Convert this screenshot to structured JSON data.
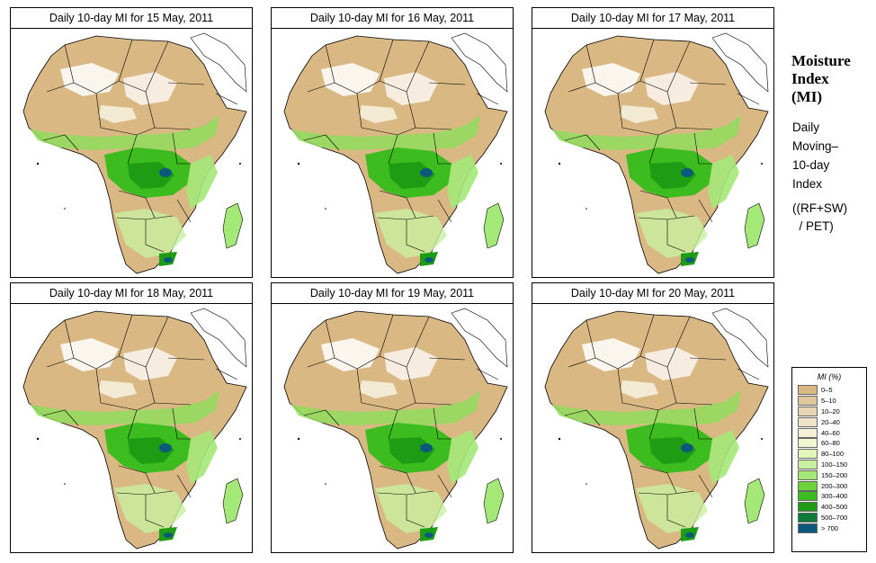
{
  "panels": [
    {
      "title": "Daily 10-day MI for  15 May, 2011"
    },
    {
      "title": "Daily 10-day MI for  16 May, 2011"
    },
    {
      "title": "Daily 10-day MI for  17 May, 2011"
    },
    {
      "title": "Daily 10-day MI for  18 May, 2011"
    },
    {
      "title": "Daily 10-day MI for  19 May, 2011"
    },
    {
      "title": "Daily 10-day MI for  20 May, 2011"
    }
  ],
  "sidebar": {
    "title_line1": "Moisture",
    "title_line2": "Index",
    "title_line3": "(MI)",
    "sub_line1": "Daily",
    "sub_line2": "Moving–",
    "sub_line3": "10-day",
    "sub_line4": "Index",
    "formula_line1": "((RF+SW)",
    "formula_line2": "  / PET)"
  },
  "legend": {
    "title": "MI (%)",
    "items": [
      {
        "label": "0–5",
        "color": "#d9b884"
      },
      {
        "label": "5–10",
        "color": "#dfc79c"
      },
      {
        "label": "10–20",
        "color": "#e7d6b4"
      },
      {
        "label": "20–40",
        "color": "#efe4c8"
      },
      {
        "label": "40–60",
        "color": "#f5efd8"
      },
      {
        "label": "60–80",
        "color": "#f0f7d0"
      },
      {
        "label": "80–100",
        "color": "#e3f5b8"
      },
      {
        "label": "100–150",
        "color": "#c8f0a0"
      },
      {
        "label": "150–200",
        "color": "#a4e878"
      },
      {
        "label": "200–300",
        "color": "#6ad43a"
      },
      {
        "label": "300–400",
        "color": "#3cbc1e"
      },
      {
        "label": "400–500",
        "color": "#1e9c14"
      },
      {
        "label": "500–700",
        "color": "#0e7a3c"
      },
      {
        "label": "> 700",
        "color": "#0c5a7a"
      }
    ]
  }
}
